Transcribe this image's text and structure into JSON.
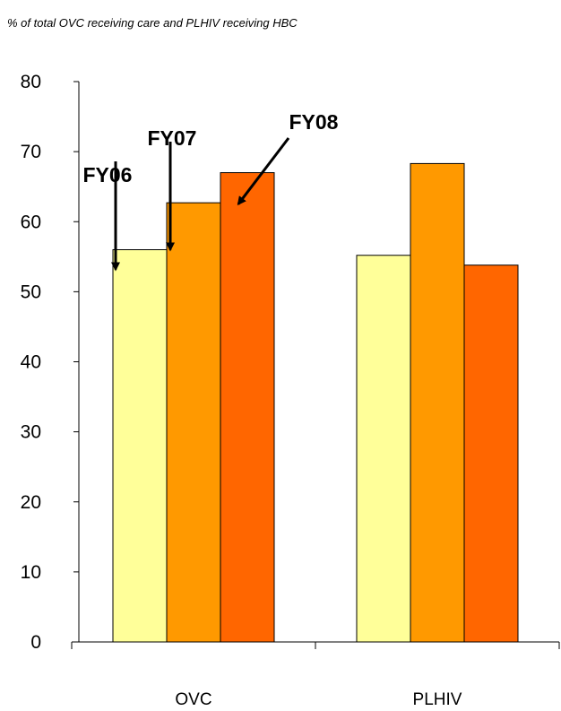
{
  "subtitle": "% of total OVC receiving care and PLHIV receiving HBC",
  "chart_data": {
    "type": "bar",
    "categories": [
      "OVC",
      "PLHIV"
    ],
    "series": [
      {
        "name": "FY06",
        "color": "#FFFF99",
        "values": [
          56,
          55.2
        ]
      },
      {
        "name": "FY07",
        "color": "#FF9900",
        "values": [
          62.7,
          68.3
        ]
      },
      {
        "name": "FY08",
        "color": "#FF6600",
        "values": [
          67,
          53.8
        ]
      }
    ],
    "ylim": [
      0,
      80
    ],
    "yticks": [
      0,
      10,
      20,
      30,
      40,
      50,
      60,
      70,
      80
    ],
    "grid": false,
    "legend": "annotations with arrows on OVC bars"
  }
}
